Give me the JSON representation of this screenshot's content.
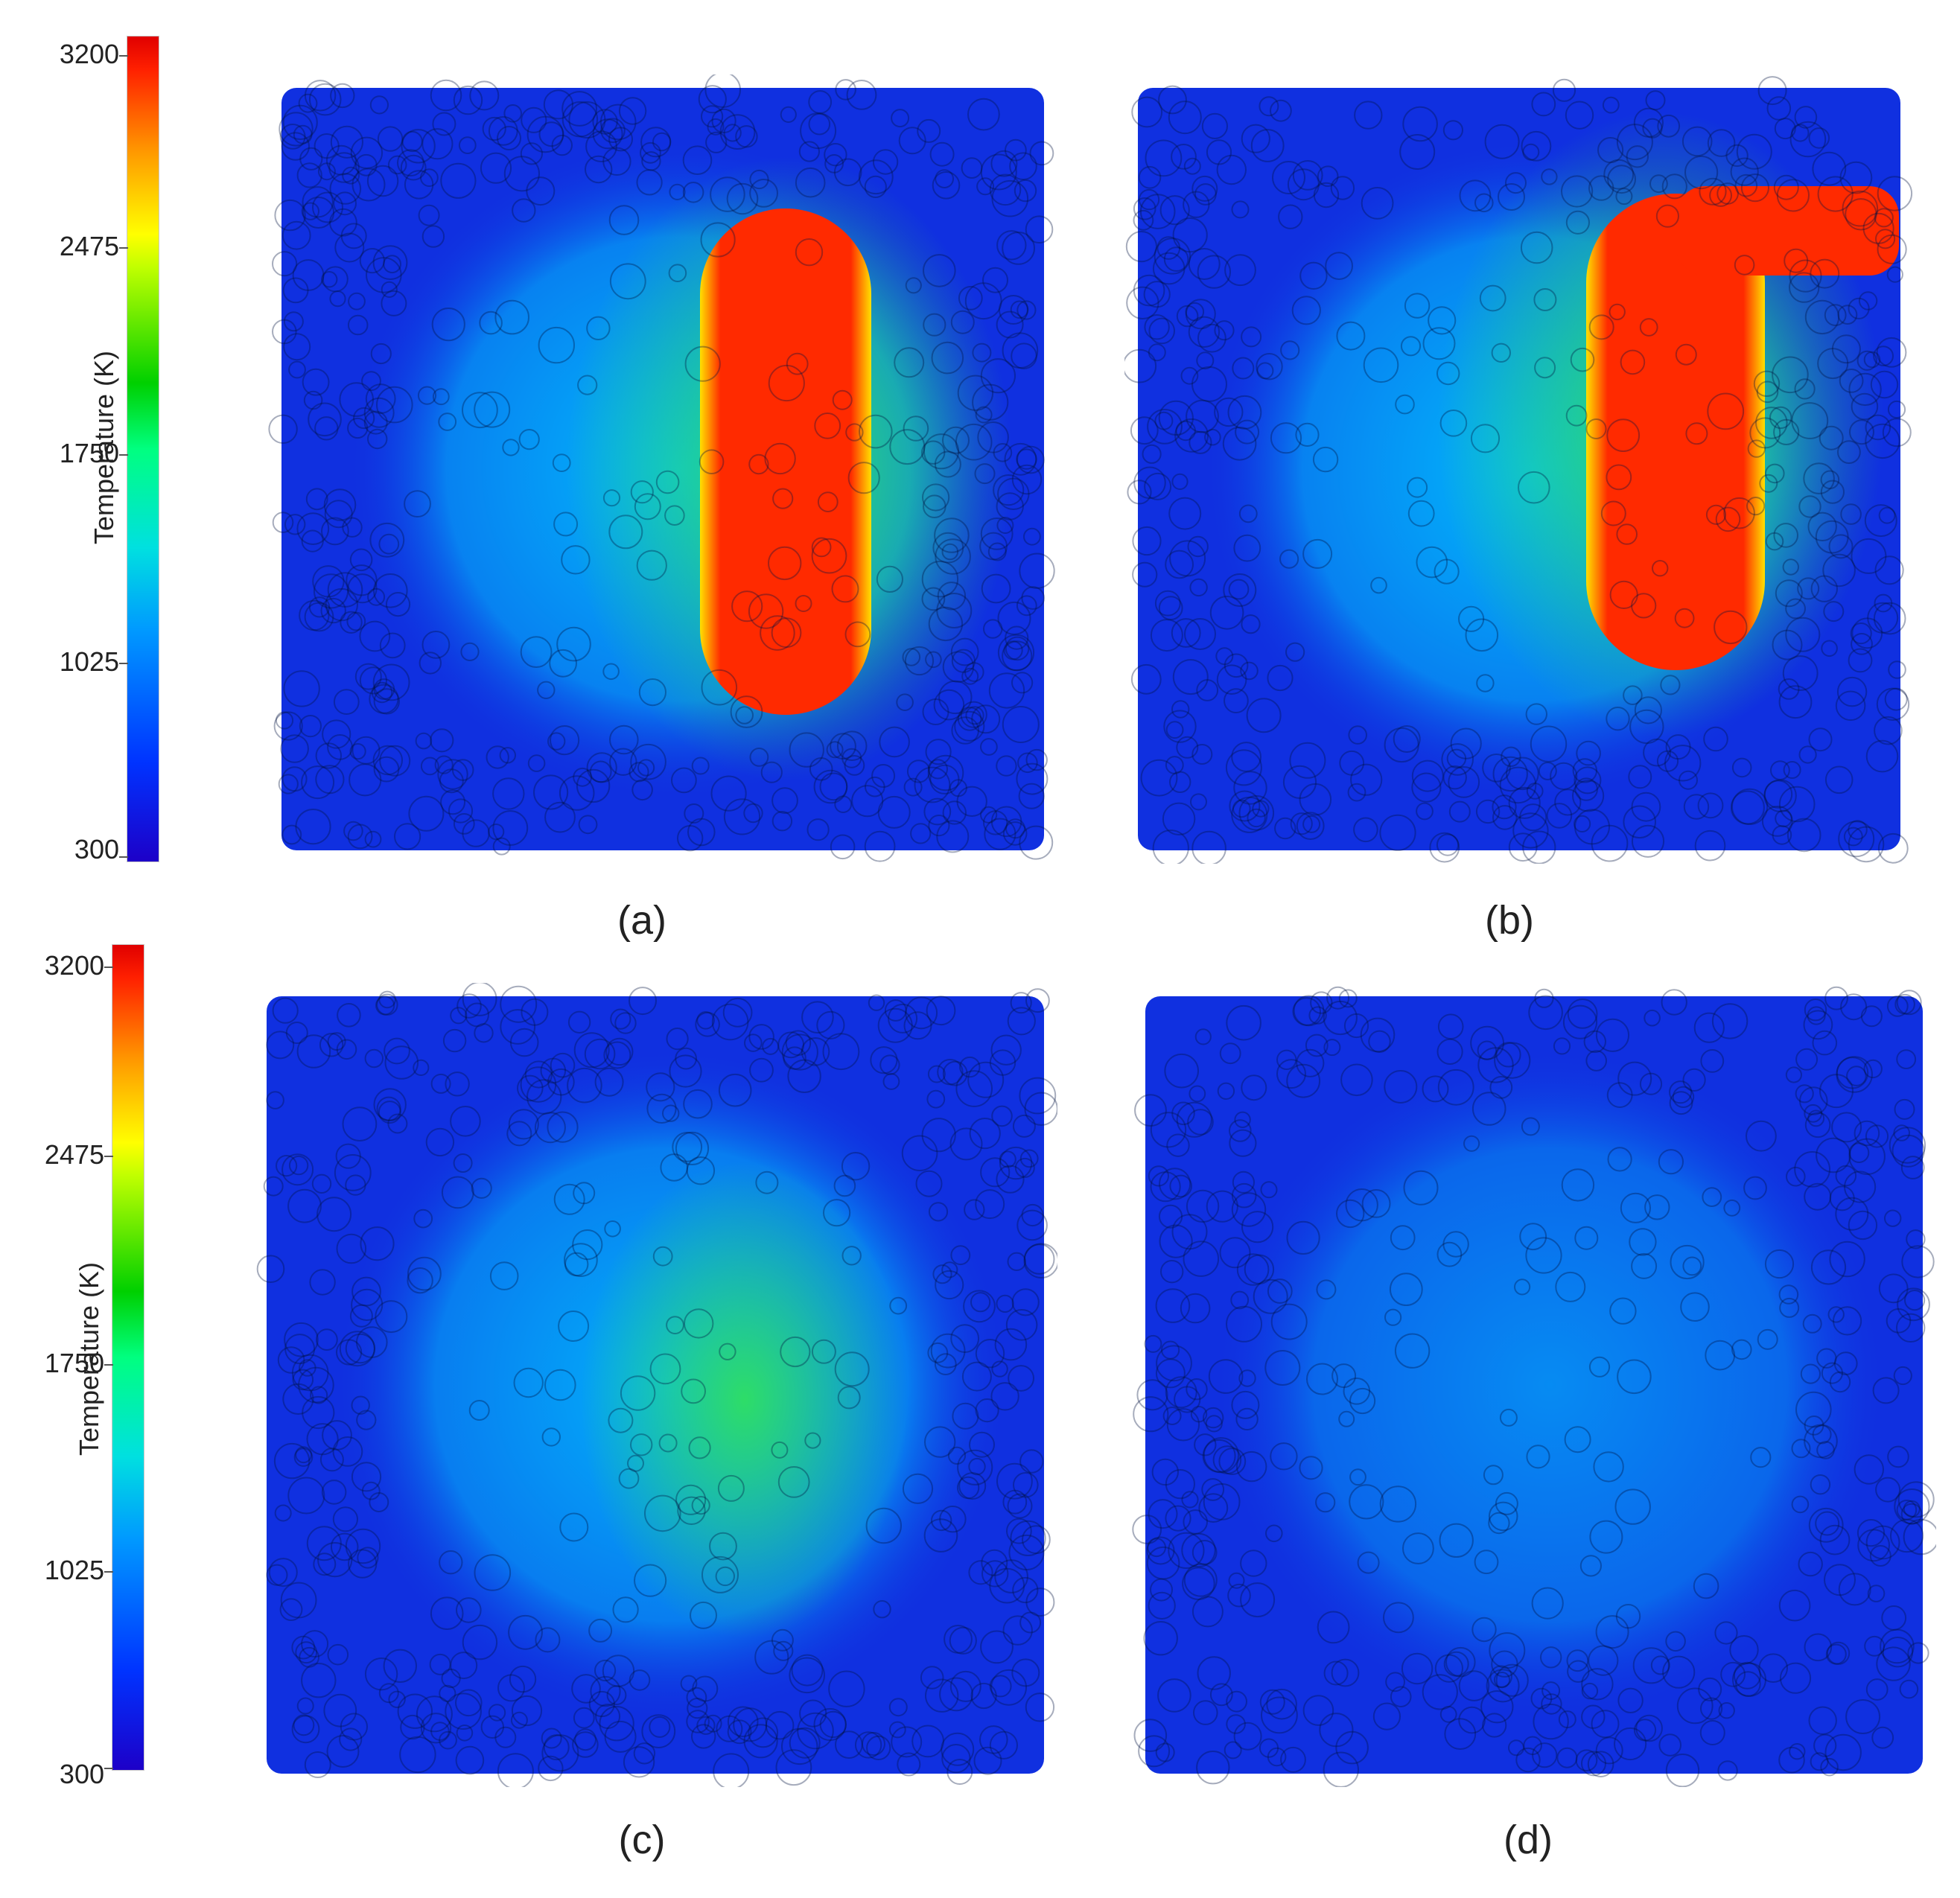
{
  "colorbar": {
    "title": "Temperature (K)",
    "min": 300,
    "max": 3200,
    "ticks": [
      "3200",
      "2475",
      "1750",
      "1025",
      "300"
    ]
  },
  "panels": [
    {
      "label": "(a)"
    },
    {
      "label": "(b)"
    },
    {
      "label": "(c)"
    },
    {
      "label": "(d)"
    }
  ],
  "colors": {
    "cold": "#1030e0",
    "cool": "#00c8ff",
    "warm": "#30e060",
    "hot": "#ff2a00"
  }
}
